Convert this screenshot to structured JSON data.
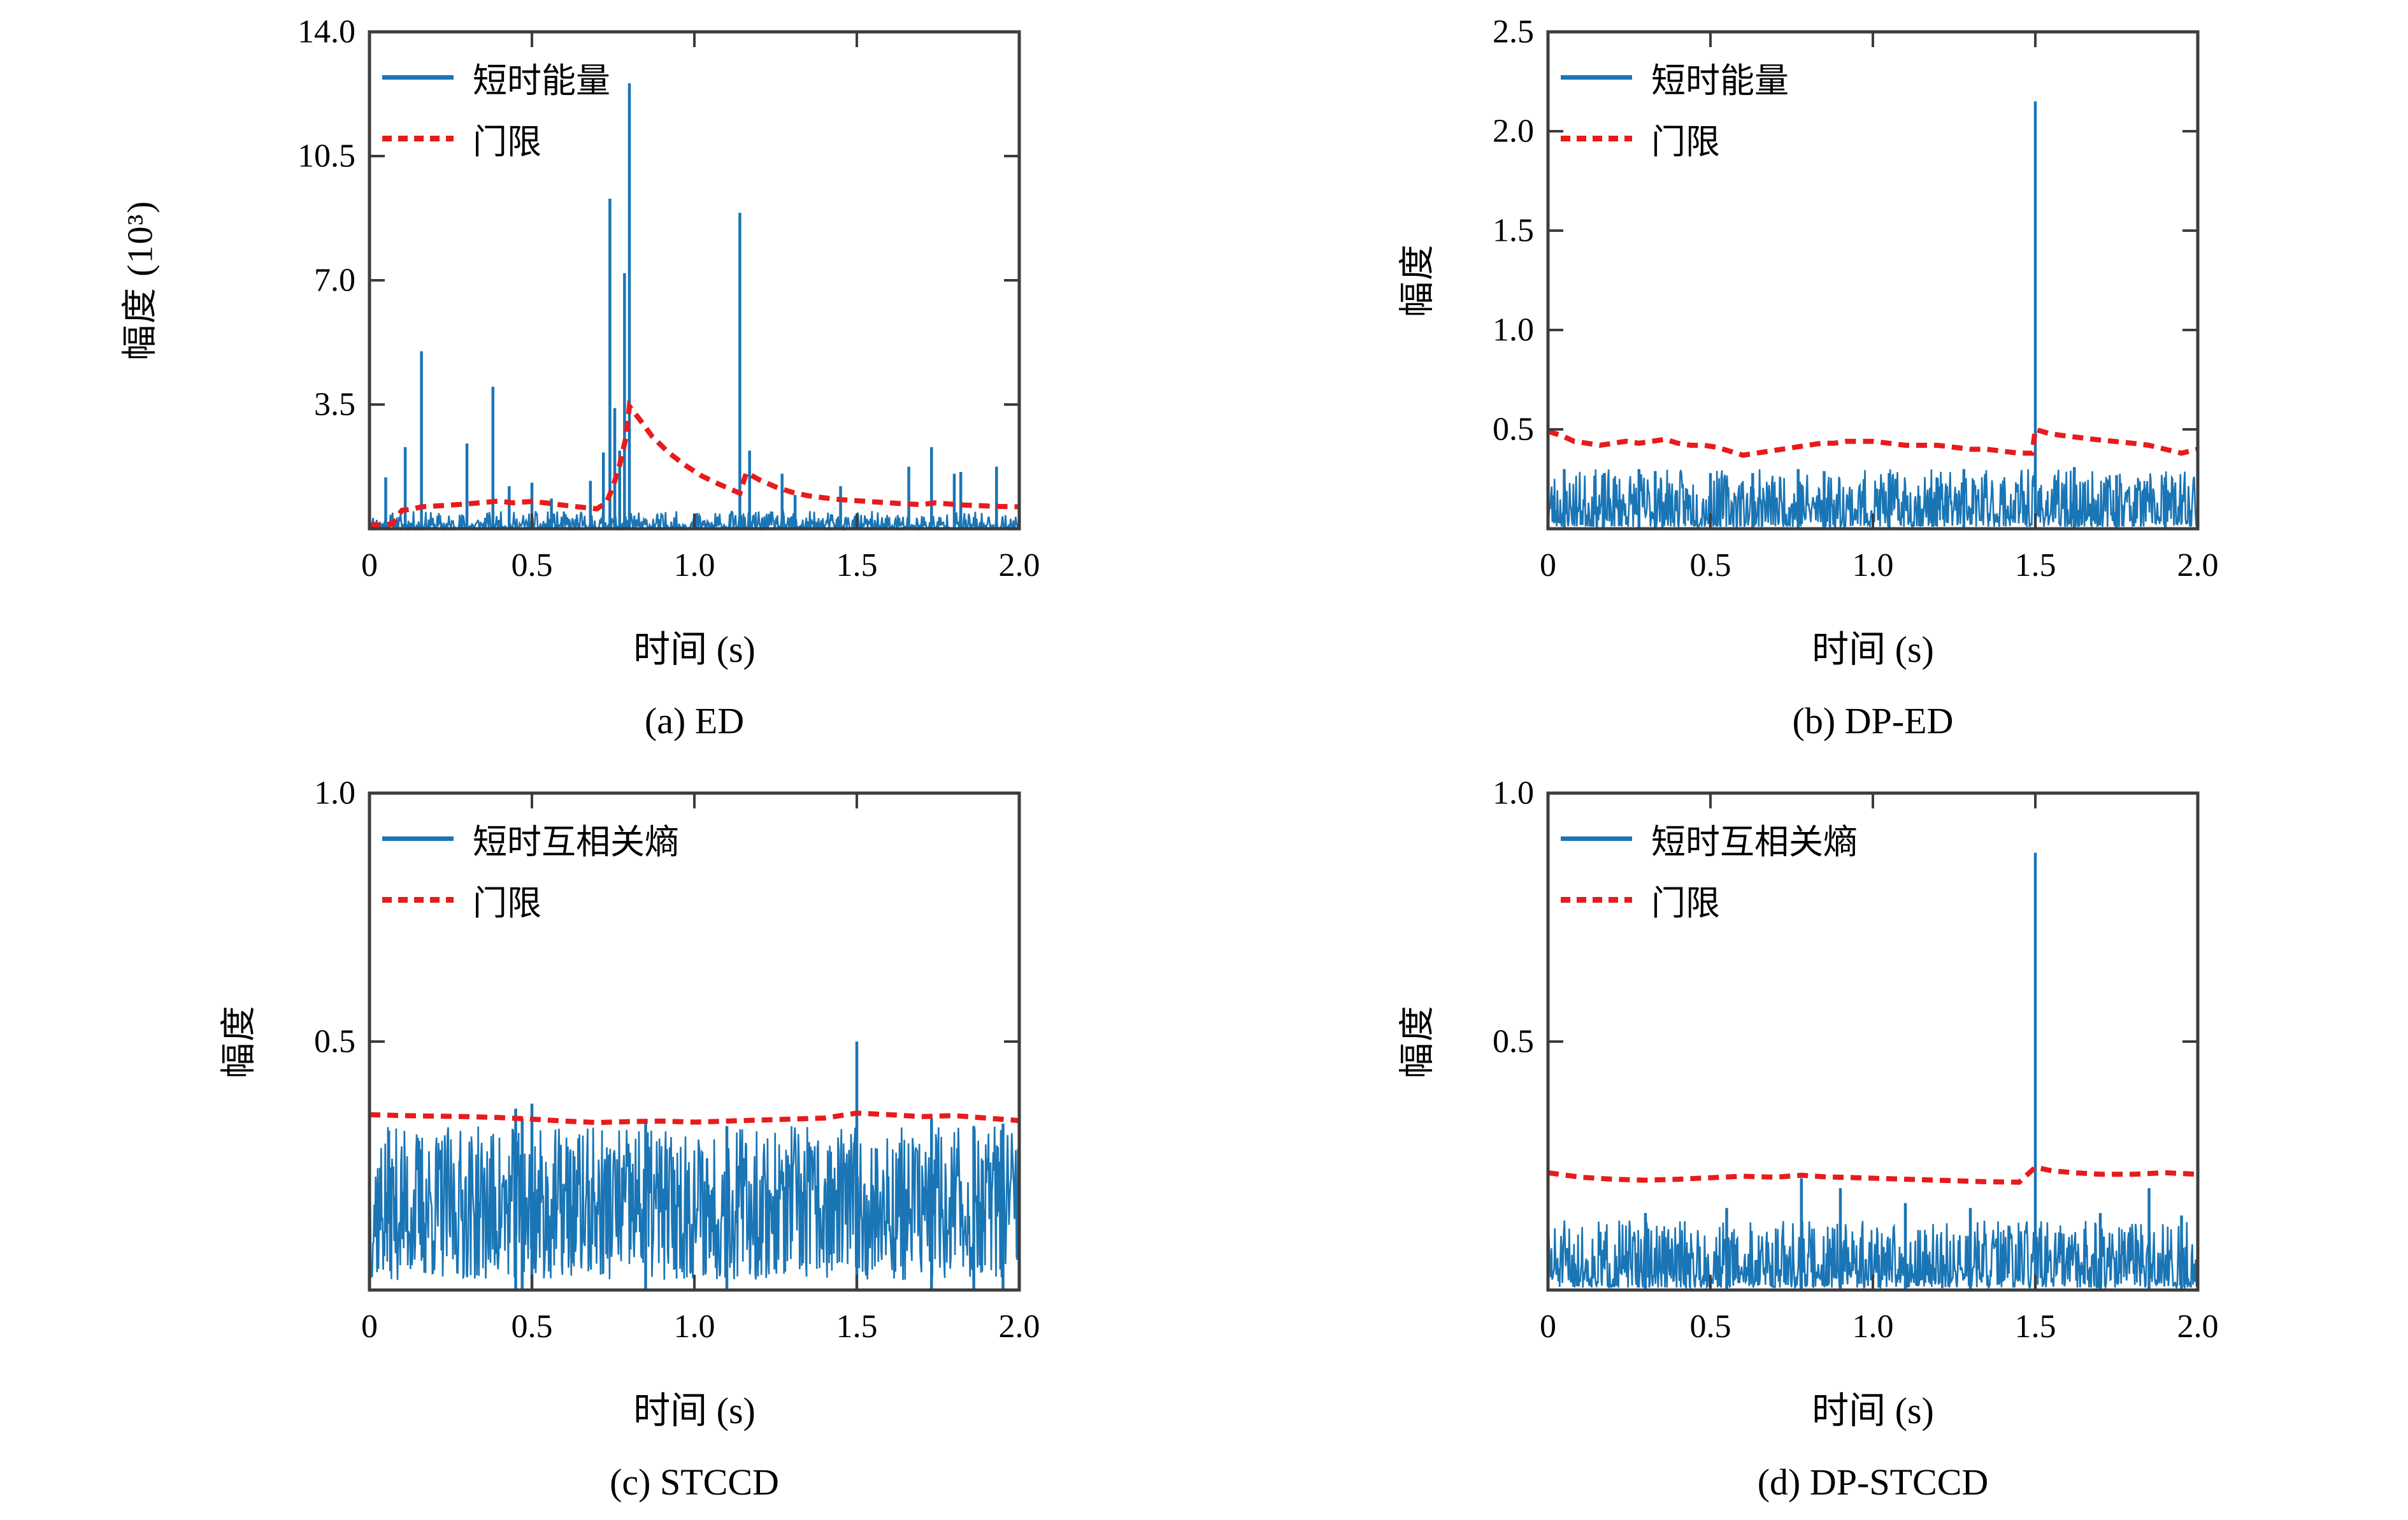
{
  "colors": {
    "signal": "#1a75b5",
    "threshold": "#e81b1c",
    "axis": "#3d3d3d"
  },
  "chart_data": [
    {
      "id": "a",
      "type": "line",
      "caption": "(a) ED",
      "xlabel": "时间 (s)",
      "ylabel": "幅度 (10³)",
      "xlim": [
        0,
        2.0
      ],
      "ylim": [
        0,
        14.0
      ],
      "xtick_vals": [
        0,
        0.5,
        1.0,
        1.5,
        2.0
      ],
      "xtick_labels": [
        "0",
        "0.5",
        "1.0",
        "1.5",
        "2.0"
      ],
      "ytick_vals": [
        3.5,
        7.0,
        10.5,
        14.0
      ],
      "ytick_labels": [
        "3.5",
        "7.0",
        "10.5",
        "14.0"
      ],
      "grid": false,
      "legend_position": "top-left",
      "legend": [
        {
          "label": "短时能量",
          "style": "solid",
          "color": "#1a75b5"
        },
        {
          "label": "门限",
          "style": "dashed",
          "color": "#e81b1c"
        }
      ],
      "series": [
        {
          "name": "短时能量",
          "kind": "signal",
          "color": "#1a75b5",
          "noise": {
            "seed": 11,
            "n": 900,
            "lo": 0.01,
            "hi": 0.5,
            "pow": 3.0
          },
          "spikes": [
            [
              0.05,
              1.45
            ],
            [
              0.11,
              2.3
            ],
            [
              0.16,
              5.0
            ],
            [
              0.3,
              2.4
            ],
            [
              0.38,
              4.0
            ],
            [
              0.43,
              1.2
            ],
            [
              0.5,
              1.3
            ],
            [
              0.56,
              0.85
            ],
            [
              0.68,
              1.35
            ],
            [
              0.72,
              2.15
            ],
            [
              0.74,
              9.3
            ],
            [
              0.755,
              3.4
            ],
            [
              0.77,
              2.2
            ],
            [
              0.785,
              7.2
            ],
            [
              0.8,
              12.55
            ],
            [
              1.14,
              8.9
            ],
            [
              1.17,
              2.2
            ],
            [
              1.27,
              1.55
            ],
            [
              1.31,
              0.95
            ],
            [
              1.45,
              1.2
            ],
            [
              1.66,
              1.75
            ],
            [
              1.73,
              2.3
            ],
            [
              1.8,
              1.55
            ],
            [
              1.82,
              1.6
            ],
            [
              1.93,
              1.75
            ]
          ]
        },
        {
          "name": "门限",
          "kind": "threshold",
          "color": "#e81b1c",
          "points": [
            [
              0,
              0.1
            ],
            [
              0.07,
              0.13
            ],
            [
              0.1,
              0.52
            ],
            [
              0.13,
              0.55
            ],
            [
              0.16,
              0.62
            ],
            [
              0.22,
              0.65
            ],
            [
              0.3,
              0.7
            ],
            [
              0.35,
              0.74
            ],
            [
              0.4,
              0.78
            ],
            [
              0.44,
              0.73
            ],
            [
              0.5,
              0.77
            ],
            [
              0.55,
              0.72
            ],
            [
              0.6,
              0.66
            ],
            [
              0.66,
              0.6
            ],
            [
              0.7,
              0.56
            ],
            [
              0.73,
              0.75
            ],
            [
              0.75,
              1.2
            ],
            [
              0.77,
              1.8
            ],
            [
              0.79,
              2.6
            ],
            [
              0.8,
              3.45
            ],
            [
              0.83,
              3.1
            ],
            [
              0.87,
              2.6
            ],
            [
              0.92,
              2.15
            ],
            [
              0.97,
              1.8
            ],
            [
              1.02,
              1.5
            ],
            [
              1.07,
              1.28
            ],
            [
              1.12,
              1.08
            ],
            [
              1.14,
              1.0
            ],
            [
              1.16,
              1.58
            ],
            [
              1.2,
              1.38
            ],
            [
              1.25,
              1.18
            ],
            [
              1.3,
              1.03
            ],
            [
              1.35,
              0.93
            ],
            [
              1.4,
              0.87
            ],
            [
              1.45,
              0.82
            ],
            [
              1.5,
              0.79
            ],
            [
              1.55,
              0.76
            ],
            [
              1.6,
              0.73
            ],
            [
              1.65,
              0.7
            ],
            [
              1.7,
              0.68
            ],
            [
              1.74,
              0.73
            ],
            [
              1.78,
              0.7
            ],
            [
              1.83,
              0.67
            ],
            [
              1.88,
              0.65
            ],
            [
              1.93,
              0.63
            ],
            [
              2.0,
              0.62
            ]
          ]
        }
      ]
    },
    {
      "id": "b",
      "type": "line",
      "caption": "(b) DP-ED",
      "xlabel": "时间 (s)",
      "ylabel": "幅度",
      "xlim": [
        0,
        2.0
      ],
      "ylim": [
        0,
        2.5
      ],
      "xtick_vals": [
        0,
        0.5,
        1.0,
        1.5,
        2.0
      ],
      "xtick_labels": [
        "0",
        "0.5",
        "1.0",
        "1.5",
        "2.0"
      ],
      "ytick_vals": [
        0.5,
        1.0,
        1.5,
        2.0,
        2.5
      ],
      "ytick_labels": [
        "0.5",
        "1.0",
        "1.5",
        "2.0",
        "2.5"
      ],
      "grid": false,
      "legend_position": "top-left",
      "legend": [
        {
          "label": "短时能量",
          "style": "solid",
          "color": "#1a75b5"
        },
        {
          "label": "门限",
          "style": "dashed",
          "color": "#e81b1c"
        }
      ],
      "series": [
        {
          "name": "短时能量",
          "kind": "signal",
          "color": "#1a75b5",
          "noise": {
            "seed": 23,
            "n": 900,
            "lo": 0.01,
            "hi": 0.3,
            "pow": 1.8
          },
          "spikes": [
            [
              0.05,
              0.3
            ],
            [
              0.17,
              0.27
            ],
            [
              0.28,
              0.3
            ],
            [
              0.33,
              0.29
            ],
            [
              0.5,
              0.28
            ],
            [
              0.63,
              0.28
            ],
            [
              0.77,
              0.3
            ],
            [
              0.85,
              0.29
            ],
            [
              1.05,
              0.28
            ],
            [
              1.28,
              0.3
            ],
            [
              1.5,
              2.15
            ],
            [
              1.62,
              0.31
            ],
            [
              1.75,
              0.27
            ],
            [
              1.9,
              0.26
            ]
          ]
        },
        {
          "name": "门限",
          "kind": "threshold",
          "color": "#e81b1c",
          "points": [
            [
              0,
              0.49
            ],
            [
              0.04,
              0.47
            ],
            [
              0.08,
              0.44
            ],
            [
              0.12,
              0.43
            ],
            [
              0.16,
              0.42
            ],
            [
              0.2,
              0.43
            ],
            [
              0.24,
              0.44
            ],
            [
              0.28,
              0.43
            ],
            [
              0.32,
              0.44
            ],
            [
              0.36,
              0.45
            ],
            [
              0.4,
              0.43
            ],
            [
              0.44,
              0.42
            ],
            [
              0.48,
              0.42
            ],
            [
              0.52,
              0.41
            ],
            [
              0.56,
              0.39
            ],
            [
              0.6,
              0.37
            ],
            [
              0.64,
              0.38
            ],
            [
              0.68,
              0.39
            ],
            [
              0.72,
              0.4
            ],
            [
              0.76,
              0.41
            ],
            [
              0.8,
              0.42
            ],
            [
              0.84,
              0.43
            ],
            [
              0.88,
              0.43
            ],
            [
              0.92,
              0.44
            ],
            [
              0.96,
              0.44
            ],
            [
              1.0,
              0.44
            ],
            [
              1.05,
              0.43
            ],
            [
              1.1,
              0.42
            ],
            [
              1.15,
              0.42
            ],
            [
              1.2,
              0.42
            ],
            [
              1.25,
              0.41
            ],
            [
              1.3,
              0.4
            ],
            [
              1.35,
              0.4
            ],
            [
              1.4,
              0.39
            ],
            [
              1.45,
              0.38
            ],
            [
              1.49,
              0.38
            ],
            [
              1.5,
              0.5
            ],
            [
              1.54,
              0.48
            ],
            [
              1.58,
              0.47
            ],
            [
              1.63,
              0.46
            ],
            [
              1.68,
              0.45
            ],
            [
              1.74,
              0.44
            ],
            [
              1.8,
              0.43
            ],
            [
              1.85,
              0.42
            ],
            [
              1.9,
              0.4
            ],
            [
              1.95,
              0.38
            ],
            [
              2.0,
              0.4
            ]
          ]
        }
      ]
    },
    {
      "id": "c",
      "type": "line",
      "caption": "(c) STCCD",
      "xlabel": "时间 (s)",
      "ylabel": "幅度",
      "xlim": [
        0,
        2.0
      ],
      "ylim": [
        0,
        1.0
      ],
      "xtick_vals": [
        0,
        0.5,
        1.0,
        1.5,
        2.0
      ],
      "xtick_labels": [
        "0",
        "0.5",
        "1.0",
        "1.5",
        "2.0"
      ],
      "ytick_vals": [
        0.5,
        1.0
      ],
      "ytick_labels": [
        "0.5",
        "1.0"
      ],
      "grid": false,
      "legend_position": "top-left",
      "legend": [
        {
          "label": "短时互相关熵",
          "style": "solid",
          "color": "#1a75b5"
        },
        {
          "label": "门限",
          "style": "dashed",
          "color": "#e81b1c"
        }
      ],
      "series": [
        {
          "name": "短时互相关熵",
          "kind": "signal",
          "color": "#1a75b5",
          "noise": {
            "seed": 37,
            "n": 950,
            "lo": 0.02,
            "hi": 0.33,
            "pow": 1.15
          },
          "spikes": [
            [
              0.45,
              0.365
            ],
            [
              0.47,
              0.345
            ],
            [
              0.5,
              0.375
            ],
            [
              0.85,
              0.335
            ],
            [
              1.1,
              0.33
            ],
            [
              1.5,
              0.5
            ],
            [
              1.73,
              0.345
            ],
            [
              1.86,
              0.33
            ],
            [
              1.95,
              0.335
            ]
          ]
        },
        {
          "name": "门限",
          "kind": "threshold",
          "color": "#e81b1c",
          "points": [
            [
              0,
              0.353
            ],
            [
              0.1,
              0.351
            ],
            [
              0.2,
              0.35
            ],
            [
              0.3,
              0.349
            ],
            [
              0.4,
              0.347
            ],
            [
              0.5,
              0.344
            ],
            [
              0.6,
              0.34
            ],
            [
              0.7,
              0.337
            ],
            [
              0.8,
              0.339
            ],
            [
              0.9,
              0.34
            ],
            [
              1.0,
              0.338
            ],
            [
              1.1,
              0.34
            ],
            [
              1.2,
              0.342
            ],
            [
              1.3,
              0.344
            ],
            [
              1.4,
              0.346
            ],
            [
              1.5,
              0.356
            ],
            [
              1.6,
              0.353
            ],
            [
              1.7,
              0.349
            ],
            [
              1.8,
              0.351
            ],
            [
              1.9,
              0.346
            ],
            [
              2.0,
              0.341
            ]
          ]
        }
      ]
    },
    {
      "id": "d",
      "type": "line",
      "caption": "(d) DP-STCCD",
      "xlabel": "时间 (s)",
      "ylabel": "幅度",
      "xlim": [
        0,
        2.0
      ],
      "ylim": [
        0,
        1.0
      ],
      "xtick_vals": [
        0,
        0.5,
        1.0,
        1.5,
        2.0
      ],
      "xtick_labels": [
        "0",
        "0.5",
        "1.0",
        "1.5",
        "2.0"
      ],
      "ytick_vals": [
        0.5,
        1.0
      ],
      "ytick_labels": [
        "0.5",
        "1.0"
      ],
      "grid": false,
      "legend_position": "top-left",
      "legend": [
        {
          "label": "短时互相关熵",
          "style": "solid",
          "color": "#1a75b5"
        },
        {
          "label": "门限",
          "style": "dashed",
          "color": "#e81b1c"
        }
      ],
      "series": [
        {
          "name": "短时互相关熵",
          "kind": "signal",
          "color": "#1a75b5",
          "noise": {
            "seed": 51,
            "n": 950,
            "lo": 0.005,
            "hi": 0.14,
            "pow": 1.9
          },
          "spikes": [
            [
              0.3,
              0.155
            ],
            [
              0.55,
              0.165
            ],
            [
              0.78,
              0.225
            ],
            [
              0.9,
              0.205
            ],
            [
              1.1,
              0.175
            ],
            [
              1.3,
              0.165
            ],
            [
              1.5,
              0.88
            ],
            [
              1.7,
              0.155
            ],
            [
              1.85,
              0.205
            ],
            [
              1.95,
              0.15
            ]
          ]
        },
        {
          "name": "门限",
          "kind": "threshold",
          "color": "#e81b1c",
          "points": [
            [
              0,
              0.236
            ],
            [
              0.1,
              0.227
            ],
            [
              0.2,
              0.223
            ],
            [
              0.3,
              0.221
            ],
            [
              0.4,
              0.223
            ],
            [
              0.5,
              0.226
            ],
            [
              0.6,
              0.229
            ],
            [
              0.7,
              0.227
            ],
            [
              0.78,
              0.231
            ],
            [
              0.85,
              0.228
            ],
            [
              0.95,
              0.226
            ],
            [
              1.05,
              0.224
            ],
            [
              1.15,
              0.222
            ],
            [
              1.25,
              0.22
            ],
            [
              1.35,
              0.218
            ],
            [
              1.45,
              0.217
            ],
            [
              1.5,
              0.247
            ],
            [
              1.55,
              0.24
            ],
            [
              1.62,
              0.236
            ],
            [
              1.7,
              0.233
            ],
            [
              1.8,
              0.233
            ],
            [
              1.9,
              0.236
            ],
            [
              2.0,
              0.233
            ]
          ]
        }
      ]
    }
  ]
}
